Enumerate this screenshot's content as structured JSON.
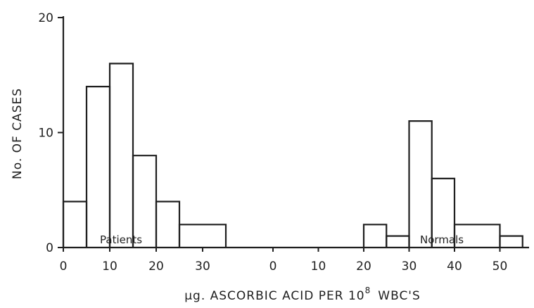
{
  "chart_data": [
    {
      "type": "bar",
      "series": [
        {
          "name": "Patients",
          "bins": [
            {
              "x0": -5,
              "x1": 5,
              "value": 4
            },
            {
              "x0": 5,
              "x1": 10,
              "value": 14
            },
            {
              "x0": 10,
              "x1": 15,
              "value": 16
            },
            {
              "x0": 15,
              "x1": 20,
              "value": 8
            },
            {
              "x0": 20,
              "x1": 25,
              "value": 4
            },
            {
              "x0": 25,
              "x1": 35,
              "value": 2
            }
          ]
        }
      ],
      "xticks": [
        "0",
        "10",
        "20",
        "30"
      ],
      "yticks": [
        "0",
        "10",
        "20"
      ],
      "ylim": [
        0,
        20
      ],
      "xlim": [
        0,
        35
      ],
      "ylabel": "No. OF CASES",
      "xlabel": "µg. ASCORBIC ACID PER 10⁸ WBC'S"
    },
    {
      "type": "bar",
      "series": [
        {
          "name": "Normals",
          "bins": [
            {
              "x0": 20,
              "x1": 25,
              "value": 2
            },
            {
              "x0": 25,
              "x1": 30,
              "value": 1
            },
            {
              "x0": 30,
              "x1": 35,
              "value": 11
            },
            {
              "x0": 35,
              "x1": 40,
              "value": 6
            },
            {
              "x0": 40,
              "x1": 50,
              "value": 2
            },
            {
              "x0": 50,
              "x1": 55,
              "value": 1
            }
          ]
        }
      ],
      "xticks": [
        "0",
        "10",
        "20",
        "30",
        "40",
        "50"
      ],
      "xlim": [
        0,
        55
      ],
      "ylim": [
        0,
        20
      ]
    }
  ],
  "labels": {
    "ylabel": "No. OF CASES",
    "xlabel_main": "µg. ASCORBIC ACID PER 10",
    "xlabel_sup": "8",
    "xlabel_tail": "WBC'S",
    "patients": "Patients",
    "normals": "Normals"
  },
  "colors": {
    "ink": "#1f1f1f",
    "background": "#ffffff"
  }
}
